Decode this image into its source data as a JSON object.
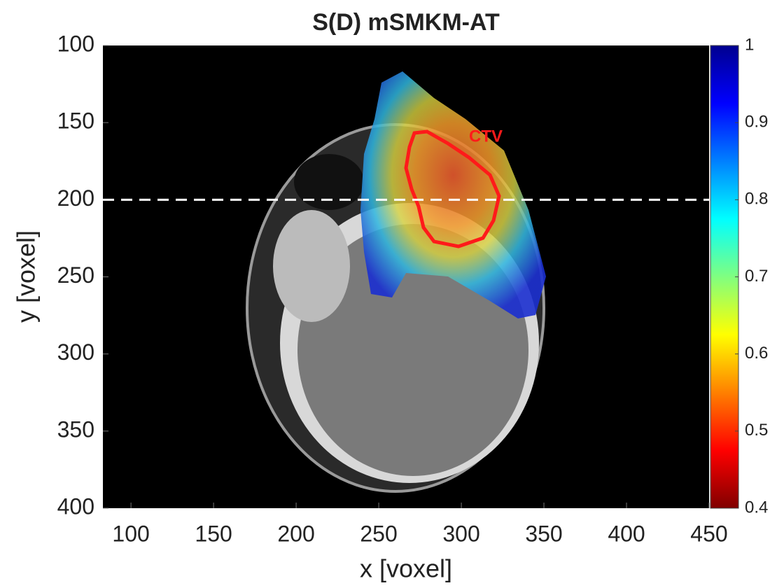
{
  "chart_data": {
    "type": "image",
    "title": "S(D) mSMKM-AT",
    "xlabel": "x [voxel]",
    "ylabel": "y [voxel]",
    "xlim": [
      83,
      450
    ],
    "xticks": [
      100,
      150,
      200,
      250,
      300,
      350,
      400,
      450
    ],
    "ylim": [
      100,
      400
    ],
    "yticks": [
      100,
      150,
      200,
      250,
      300,
      350,
      400
    ],
    "y_reversed": true,
    "hline": 200,
    "annotation": "CTV",
    "colorbar": {
      "colormap": "jet-reversed",
      "lim": [
        0.4,
        1
      ],
      "ticks": [
        0.4,
        0.5,
        0.6,
        0.7,
        0.8,
        0.9,
        1
      ]
    }
  }
}
